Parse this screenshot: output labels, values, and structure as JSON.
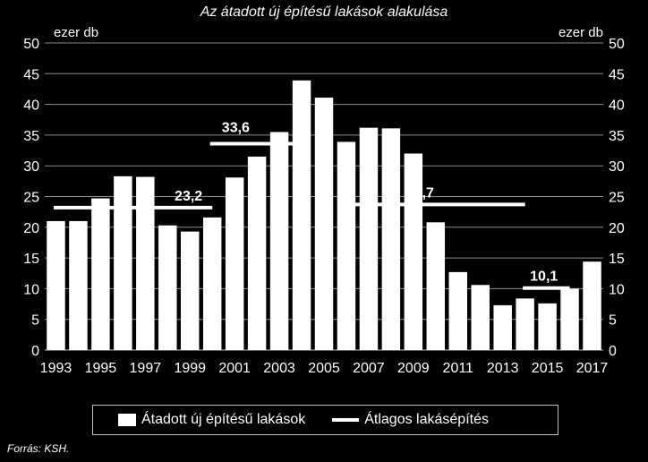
{
  "chart_data": {
    "type": "bar",
    "title": "Az átadott új építésű lakások alakulása",
    "ylabel_left": "ezer db",
    "ylabel_right": "ezer db",
    "ylim": [
      0,
      50
    ],
    "yticks": [
      "0",
      "5",
      "10",
      "15",
      "20",
      "25",
      "30",
      "35",
      "40",
      "45",
      "50"
    ],
    "grid": true,
    "categories": [
      "1993",
      "1994",
      "1995",
      "1996",
      "1997",
      "1998",
      "1999",
      "2000",
      "2001",
      "2002",
      "2003",
      "2004",
      "2005",
      "2006",
      "2007",
      "2008",
      "2009",
      "2010",
      "2011",
      "2012",
      "2013",
      "2014",
      "2015",
      "2016",
      "2017"
    ],
    "xtick_labels": [
      "1993",
      "1995",
      "1997",
      "1999",
      "2001",
      "2003",
      "2005",
      "2007",
      "2009",
      "2011",
      "2013",
      "2015",
      "2017"
    ],
    "series": [
      {
        "name": "Átadott új építésű lakások",
        "type": "bar",
        "values": [
          21.0,
          21.0,
          24.7,
          28.3,
          28.2,
          20.3,
          19.3,
          21.6,
          28.1,
          31.5,
          35.5,
          43.9,
          41.1,
          33.9,
          36.2,
          36.1,
          32.0,
          20.8,
          12.7,
          10.6,
          7.3,
          8.4,
          7.6,
          10.0,
          14.4
        ]
      },
      {
        "name": "Átlagos lakásépítés",
        "type": "segments",
        "segments": [
          {
            "from": "1993",
            "to": "2000",
            "value": 23.2,
            "label": "23,2"
          },
          {
            "from": "2000",
            "to": "2004",
            "value": 33.6,
            "label": "33,6"
          },
          {
            "from": "2006",
            "to": "2014",
            "value": 23.7,
            "label": "23,7"
          },
          {
            "from": "2014",
            "to": "2016",
            "value": 10.1,
            "label": "10,1"
          }
        ]
      }
    ],
    "legend_position": "bottom",
    "source": "Forrás: KSH."
  }
}
